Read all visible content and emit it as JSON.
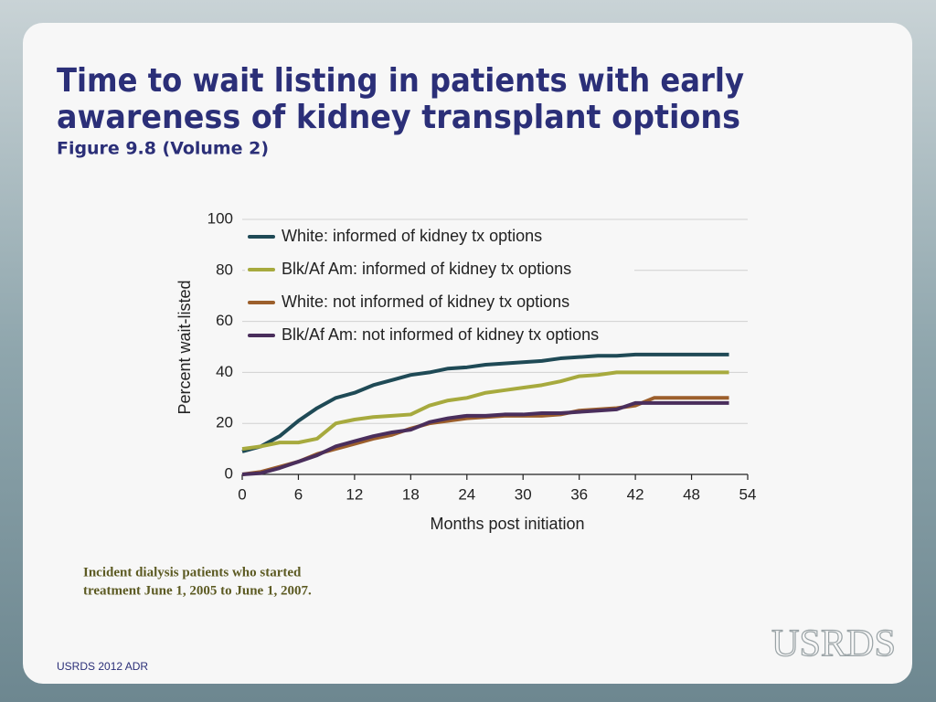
{
  "chart_data": {
    "type": "line",
    "title": [
      "Time to wait listing in patients with early",
      "awareness of kidney transplant options"
    ],
    "subtitle": "Figure 9.8 (Volume 2)",
    "x_label": "Months post initiation",
    "y_label": "Percent wait-listed",
    "x": [
      0,
      2,
      4,
      6,
      8,
      10,
      12,
      14,
      16,
      18,
      20,
      22,
      24,
      26,
      28,
      30,
      32,
      34,
      36,
      38,
      40,
      42,
      44,
      46,
      48,
      50,
      52
    ],
    "series": [
      {
        "name": "White: informed of kidney tx options",
        "color": "#1f4a56",
        "values": [
          9,
          11,
          15,
          21,
          26,
          30,
          32,
          35,
          37,
          39,
          40,
          41.5,
          42,
          43,
          43.5,
          44,
          44.5,
          45.5,
          46,
          46.5,
          46.5,
          47,
          47,
          47,
          47,
          47,
          47
        ]
      },
      {
        "name": "Blk/Af Am: informed of kidney tx options",
        "color": "#a7aa3e",
        "values": [
          10,
          11,
          12.5,
          12.5,
          14,
          20,
          21.5,
          22.5,
          23,
          23.5,
          27,
          29,
          30,
          32,
          33,
          34,
          35,
          36.5,
          38.5,
          39,
          40,
          40,
          40,
          40,
          40,
          40,
          40
        ]
      },
      {
        "name": "White: not informed of kidney tx options",
        "color": "#9c5f2c",
        "values": [
          0,
          1,
          3,
          5,
          8,
          10,
          12,
          14,
          15.5,
          18,
          20,
          21,
          22,
          22.5,
          23,
          23,
          23,
          23.5,
          25,
          25.5,
          26,
          27,
          30,
          30,
          30,
          30,
          30
        ]
      },
      {
        "name": "Blk/Af Am: not informed of kidney tx options",
        "color": "#4a2e5c",
        "values": [
          0,
          0.5,
          2.5,
          5,
          7.5,
          11,
          13,
          15,
          16.5,
          17.5,
          20.5,
          22,
          23,
          23,
          23.5,
          23.5,
          24,
          24,
          24.5,
          25,
          25.5,
          28,
          28,
          28,
          28,
          28,
          28
        ]
      }
    ],
    "xlim": [
      0,
      54
    ],
    "xticks": [
      0,
      6,
      12,
      18,
      24,
      30,
      36,
      42,
      48,
      54
    ],
    "ylim": [
      0,
      100
    ],
    "yticks": [
      0,
      20,
      40,
      60,
      80,
      100
    ],
    "grid": true,
    "legend": "upper-left"
  },
  "footnote": [
    "Incident dialysis patients who started",
    "treatment June 1, 2005 to June 1, 2007."
  ],
  "footer": "USRDS 2012 ADR",
  "logo": "USRDS"
}
